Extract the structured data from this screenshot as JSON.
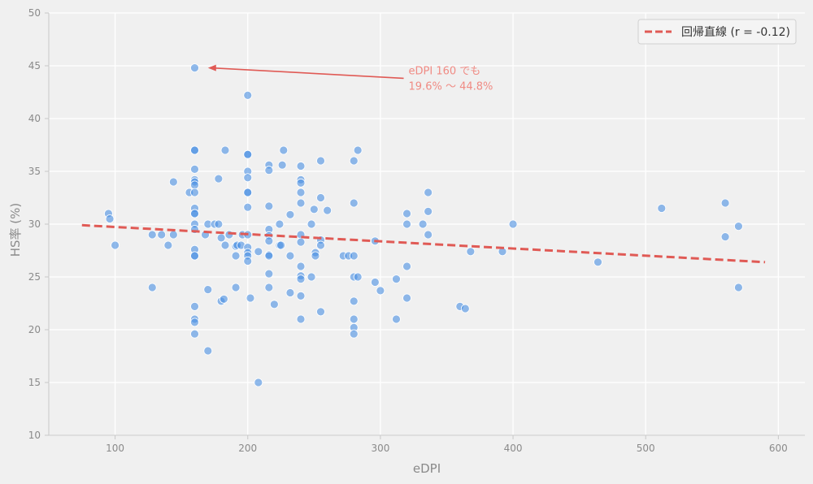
{
  "chart_data": {
    "type": "scatter",
    "title": "",
    "xlabel": "eDPI",
    "ylabel": "HS率 (%)",
    "xlim": [
      50,
      620
    ],
    "ylim": [
      10,
      50
    ],
    "xticks": [
      100,
      200,
      300,
      400,
      500,
      600
    ],
    "yticks": [
      10,
      15,
      20,
      25,
      30,
      35,
      40,
      45,
      50
    ],
    "grid": true,
    "legend_position": "top-right",
    "colors": {
      "points": "#4a90e2",
      "regression": "#e05a55",
      "annotation": "#f08b84"
    },
    "series": [
      {
        "points": [
          [
            95,
            31
          ],
          [
            96,
            30.5
          ],
          [
            100,
            28
          ],
          [
            128,
            24
          ],
          [
            128,
            29
          ],
          [
            135,
            29
          ],
          [
            140,
            28
          ],
          [
            144,
            29
          ],
          [
            144,
            34
          ],
          [
            156,
            33
          ],
          [
            160,
            44.8
          ],
          [
            160,
            37
          ],
          [
            160,
            37
          ],
          [
            160,
            35.2
          ],
          [
            160,
            34.2
          ],
          [
            160,
            34
          ],
          [
            160,
            33.7
          ],
          [
            160,
            33
          ],
          [
            160,
            31.5
          ],
          [
            160,
            31
          ],
          [
            160,
            31
          ],
          [
            160,
            30
          ],
          [
            160,
            29.5
          ],
          [
            160,
            27.6
          ],
          [
            160,
            27
          ],
          [
            160,
            27
          ],
          [
            160,
            22.2
          ],
          [
            160,
            21
          ],
          [
            160,
            20.7
          ],
          [
            160,
            19.6
          ],
          [
            168,
            29
          ],
          [
            170,
            30
          ],
          [
            170,
            23.8
          ],
          [
            170,
            18
          ],
          [
            175,
            30
          ],
          [
            178,
            30
          ],
          [
            178,
            34.3
          ],
          [
            180,
            28.7
          ],
          [
            180,
            22.7
          ],
          [
            182,
            22.9
          ],
          [
            183,
            28
          ],
          [
            183,
            37
          ],
          [
            186,
            29
          ],
          [
            191,
            27.9
          ],
          [
            191,
            27
          ],
          [
            191,
            24
          ],
          [
            192,
            28
          ],
          [
            195,
            28
          ],
          [
            196,
            29
          ],
          [
            200,
            42.2
          ],
          [
            200,
            36.6
          ],
          [
            200,
            36.6
          ],
          [
            200,
            35
          ],
          [
            200,
            34.4
          ],
          [
            200,
            33
          ],
          [
            200,
            33
          ],
          [
            200,
            31.6
          ],
          [
            200,
            29
          ],
          [
            200,
            27.8
          ],
          [
            200,
            27.3
          ],
          [
            200,
            27
          ],
          [
            200,
            26.5
          ],
          [
            202,
            23
          ],
          [
            208,
            27.4
          ],
          [
            208,
            15
          ],
          [
            216,
            35.6
          ],
          [
            216,
            35.1
          ],
          [
            216,
            31.7
          ],
          [
            216,
            29.5
          ],
          [
            216,
            28.9
          ],
          [
            216,
            28.4
          ],
          [
            216,
            27.1
          ],
          [
            216,
            27
          ],
          [
            216,
            25.3
          ],
          [
            216,
            24
          ],
          [
            220,
            22.4
          ],
          [
            224,
            30
          ],
          [
            224,
            28
          ],
          [
            225,
            28
          ],
          [
            226,
            35.6
          ],
          [
            227,
            37
          ],
          [
            232,
            30.9
          ],
          [
            232,
            27
          ],
          [
            232,
            23.5
          ],
          [
            240,
            35.5
          ],
          [
            240,
            34.2
          ],
          [
            240,
            33.9
          ],
          [
            240,
            33
          ],
          [
            240,
            32
          ],
          [
            240,
            29
          ],
          [
            240,
            28.3
          ],
          [
            240,
            26
          ],
          [
            240,
            25.1
          ],
          [
            240,
            24.8
          ],
          [
            240,
            23.2
          ],
          [
            240,
            21
          ],
          [
            248,
            30
          ],
          [
            248,
            25
          ],
          [
            250,
            31.4
          ],
          [
            251,
            27.3
          ],
          [
            251,
            27
          ],
          [
            255,
            36
          ],
          [
            255,
            32.5
          ],
          [
            255,
            28.5
          ],
          [
            255,
            28
          ],
          [
            255,
            21.7
          ],
          [
            260,
            31.3
          ],
          [
            272,
            27
          ],
          [
            276,
            27
          ],
          [
            280,
            36
          ],
          [
            280,
            32
          ],
          [
            280,
            27
          ],
          [
            280,
            25
          ],
          [
            280,
            22.7
          ],
          [
            280,
            21
          ],
          [
            280,
            20.2
          ],
          [
            280,
            19.6
          ],
          [
            283,
            37
          ],
          [
            283,
            25
          ],
          [
            296,
            28.4
          ],
          [
            296,
            24.5
          ],
          [
            300,
            23.7
          ],
          [
            312,
            24.8
          ],
          [
            312,
            21
          ],
          [
            320,
            31
          ],
          [
            320,
            30
          ],
          [
            320,
            26
          ],
          [
            320,
            23
          ],
          [
            332,
            30
          ],
          [
            336,
            33
          ],
          [
            336,
            31.2
          ],
          [
            336,
            29
          ],
          [
            360,
            22.2
          ],
          [
            364,
            22
          ],
          [
            368,
            27.4
          ],
          [
            392,
            27.4
          ],
          [
            400,
            30
          ],
          [
            464,
            26.4
          ],
          [
            512,
            31.5
          ],
          [
            560,
            32
          ],
          [
            560,
            28.8
          ],
          [
            570,
            29.8
          ],
          [
            570,
            24
          ]
        ]
      }
    ],
    "regression": {
      "label": "回帰直線 (r = -0.12)",
      "x": [
        75,
        590
      ],
      "y": [
        29.9,
        26.4
      ]
    },
    "annotation": {
      "lines": [
        "eDPI 160 でも",
        "19.6% 〜 44.8%"
      ],
      "text_at": [
        320,
        44.2
      ],
      "arrow_to": [
        170,
        44.8
      ]
    }
  }
}
